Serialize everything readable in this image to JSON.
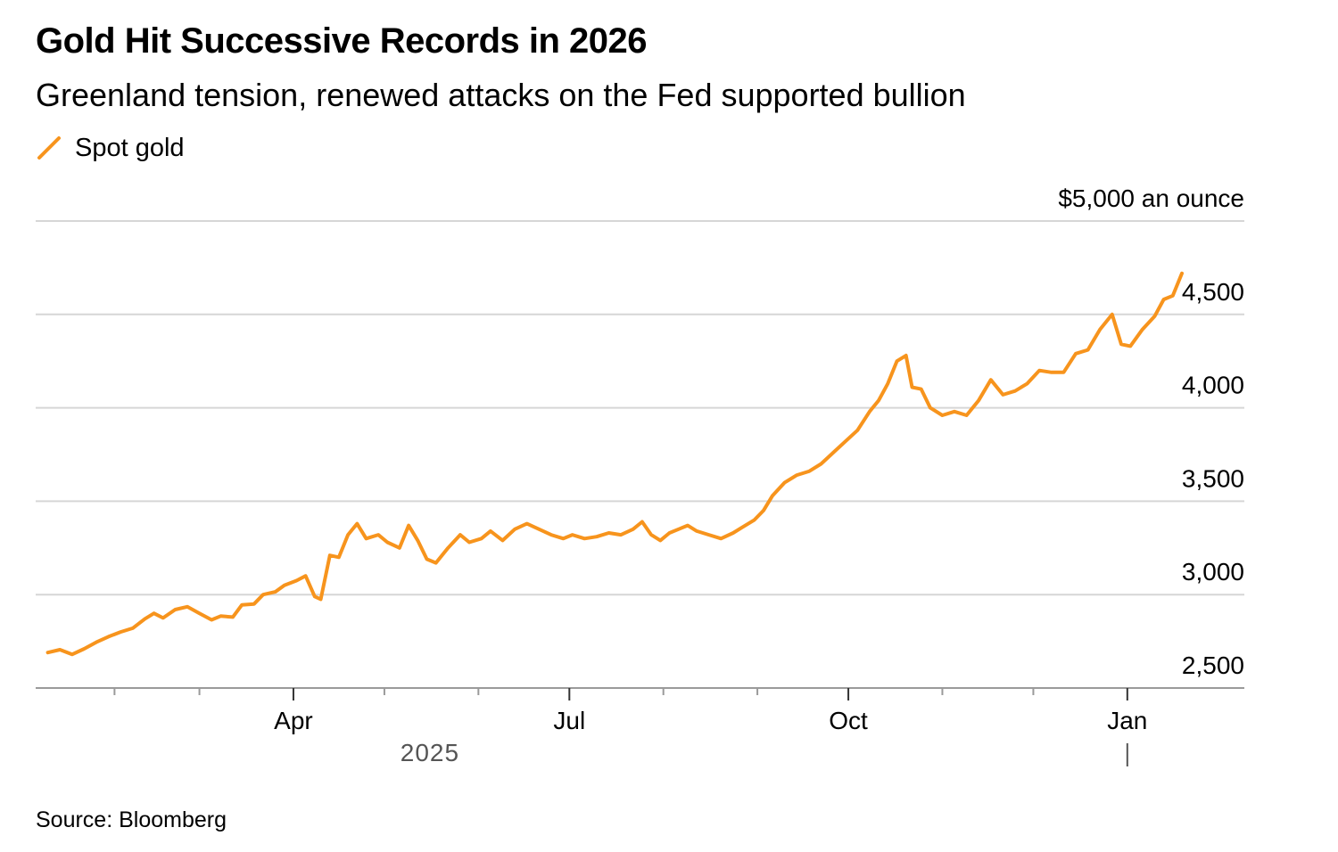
{
  "chart_data": {
    "type": "line",
    "title": "Gold Hit Successive Records in 2026",
    "subtitle": "Greenland tension, renewed attacks on the Fed supported bullion",
    "unit_label": "$5,000 an ounce",
    "source": "Source: Bloomberg",
    "legend": [
      {
        "name": "Spot gold",
        "color": "#f7941d"
      }
    ],
    "legend_placement": "top-left",
    "grid": true,
    "xlim": [
      "2025-01-06",
      "2026-01-25"
    ],
    "ylim": [
      2500,
      5000
    ],
    "y_ticks": [
      {
        "value": 5000,
        "label": "$5,000 an ounce"
      },
      {
        "value": 4500,
        "label": "4,500"
      },
      {
        "value": 4000,
        "label": "4,000"
      },
      {
        "value": 3500,
        "label": "3,500"
      },
      {
        "value": 3000,
        "label": "3,000"
      },
      {
        "value": 2500,
        "label": "2,500"
      }
    ],
    "x_tick_labels": [
      {
        "date": "2025-04-01",
        "label": "Apr"
      },
      {
        "date": "2025-07-01",
        "label": "Jul"
      },
      {
        "date": "2025-10-01",
        "label": "Oct"
      },
      {
        "date": "2026-01-01",
        "label": "Jan"
      }
    ],
    "x_minor_ticks": [
      "2025-02-01",
      "2025-03-01",
      "2025-05-01",
      "2025-06-01",
      "2025-08-01",
      "2025-09-01",
      "2025-11-01",
      "2025-12-01"
    ],
    "year_labels": [
      {
        "date": "2025-05-16",
        "label": "2025"
      }
    ],
    "year_divider": "2026-01-01",
    "series": [
      {
        "name": "Spot gold",
        "color": "#f7941d",
        "points": [
          [
            "2025-01-10",
            2690
          ],
          [
            "2025-01-14",
            2705
          ],
          [
            "2025-01-18",
            2680
          ],
          [
            "2025-01-22",
            2710
          ],
          [
            "2025-01-26",
            2745
          ],
          [
            "2025-01-30",
            2775
          ],
          [
            "2025-02-03",
            2800
          ],
          [
            "2025-02-07",
            2820
          ],
          [
            "2025-02-11",
            2870
          ],
          [
            "2025-02-14",
            2900
          ],
          [
            "2025-02-17",
            2875
          ],
          [
            "2025-02-21",
            2920
          ],
          [
            "2025-02-25",
            2935
          ],
          [
            "2025-03-01",
            2900
          ],
          [
            "2025-03-05",
            2865
          ],
          [
            "2025-03-08",
            2885
          ],
          [
            "2025-03-12",
            2880
          ],
          [
            "2025-03-15",
            2945
          ],
          [
            "2025-03-19",
            2950
          ],
          [
            "2025-03-22",
            3000
          ],
          [
            "2025-03-26",
            3015
          ],
          [
            "2025-03-29",
            3050
          ],
          [
            "2025-04-02",
            3075
          ],
          [
            "2025-04-05",
            3100
          ],
          [
            "2025-04-08",
            2990
          ],
          [
            "2025-04-10",
            2975
          ],
          [
            "2025-04-13",
            3210
          ],
          [
            "2025-04-16",
            3200
          ],
          [
            "2025-04-19",
            3320
          ],
          [
            "2025-04-22",
            3380
          ],
          [
            "2025-04-25",
            3300
          ],
          [
            "2025-04-29",
            3320
          ],
          [
            "2025-05-02",
            3280
          ],
          [
            "2025-05-06",
            3250
          ],
          [
            "2025-05-09",
            3370
          ],
          [
            "2025-05-12",
            3290
          ],
          [
            "2025-05-15",
            3190
          ],
          [
            "2025-05-18",
            3170
          ],
          [
            "2025-05-22",
            3250
          ],
          [
            "2025-05-26",
            3320
          ],
          [
            "2025-05-29",
            3280
          ],
          [
            "2025-06-02",
            3300
          ],
          [
            "2025-06-05",
            3340
          ],
          [
            "2025-06-09",
            3290
          ],
          [
            "2025-06-13",
            3350
          ],
          [
            "2025-06-17",
            3380
          ],
          [
            "2025-06-21",
            3350
          ],
          [
            "2025-06-25",
            3320
          ],
          [
            "2025-06-29",
            3300
          ],
          [
            "2025-07-02",
            3320
          ],
          [
            "2025-07-06",
            3300
          ],
          [
            "2025-07-10",
            3310
          ],
          [
            "2025-07-14",
            3330
          ],
          [
            "2025-07-18",
            3320
          ],
          [
            "2025-07-22",
            3350
          ],
          [
            "2025-07-25",
            3390
          ],
          [
            "2025-07-28",
            3320
          ],
          [
            "2025-07-31",
            3290
          ],
          [
            "2025-08-03",
            3330
          ],
          [
            "2025-08-06",
            3350
          ],
          [
            "2025-08-09",
            3370
          ],
          [
            "2025-08-12",
            3340
          ],
          [
            "2025-08-16",
            3320
          ],
          [
            "2025-08-20",
            3300
          ],
          [
            "2025-08-24",
            3330
          ],
          [
            "2025-08-27",
            3360
          ],
          [
            "2025-08-31",
            3400
          ],
          [
            "2025-09-03",
            3450
          ],
          [
            "2025-09-06",
            3530
          ],
          [
            "2025-09-10",
            3600
          ],
          [
            "2025-09-14",
            3640
          ],
          [
            "2025-09-18",
            3660
          ],
          [
            "2025-09-22",
            3700
          ],
          [
            "2025-09-26",
            3760
          ],
          [
            "2025-09-30",
            3820
          ],
          [
            "2025-10-04",
            3880
          ],
          [
            "2025-10-08",
            3980
          ],
          [
            "2025-10-11",
            4040
          ],
          [
            "2025-10-14",
            4130
          ],
          [
            "2025-10-17",
            4250
          ],
          [
            "2025-10-20",
            4280
          ],
          [
            "2025-10-22",
            4110
          ],
          [
            "2025-10-25",
            4100
          ],
          [
            "2025-10-28",
            4000
          ],
          [
            "2025-11-01",
            3960
          ],
          [
            "2025-11-05",
            3980
          ],
          [
            "2025-11-09",
            3960
          ],
          [
            "2025-11-13",
            4040
          ],
          [
            "2025-11-17",
            4150
          ],
          [
            "2025-11-21",
            4070
          ],
          [
            "2025-11-25",
            4090
          ],
          [
            "2025-11-29",
            4130
          ],
          [
            "2025-12-03",
            4200
          ],
          [
            "2025-12-07",
            4190
          ],
          [
            "2025-12-11",
            4190
          ],
          [
            "2025-12-15",
            4290
          ],
          [
            "2025-12-19",
            4310
          ],
          [
            "2025-12-23",
            4420
          ],
          [
            "2025-12-27",
            4500
          ],
          [
            "2025-12-30",
            4340
          ],
          [
            "2026-01-02",
            4330
          ],
          [
            "2026-01-06",
            4420
          ],
          [
            "2026-01-10",
            4490
          ],
          [
            "2026-01-13",
            4580
          ],
          [
            "2026-01-16",
            4600
          ],
          [
            "2026-01-19",
            4720
          ]
        ]
      }
    ]
  }
}
